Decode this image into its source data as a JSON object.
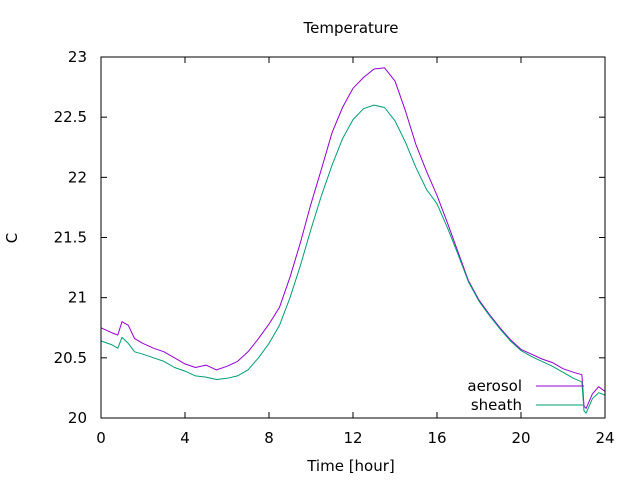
{
  "chart_data": {
    "type": "line",
    "title": "Temperature",
    "xlabel": "Time [hour]",
    "ylabel": "C",
    "xlim": [
      0,
      24
    ],
    "ylim": [
      20,
      23
    ],
    "xticks": [
      0,
      4,
      8,
      12,
      16,
      20,
      24
    ],
    "yticks": [
      20,
      20.5,
      21,
      21.5,
      22,
      22.5,
      23
    ],
    "ytick_labels": [
      "20",
      "20.5",
      "21",
      "21.5",
      "22",
      "22.5",
      "23"
    ],
    "grid": false,
    "legend_position": "bottom-right",
    "series": [
      {
        "name": "aerosol",
        "color": "#9400d3",
        "x": [
          0,
          0.5,
          0.8,
          1.0,
          1.3,
          1.6,
          2,
          2.5,
          3,
          3.5,
          4,
          4.5,
          5,
          5.5,
          6,
          6.5,
          7,
          7.5,
          8,
          8.5,
          9,
          9.5,
          10,
          10.5,
          11,
          11.5,
          12,
          12.5,
          13,
          13.5,
          14,
          14.5,
          15,
          15.5,
          16,
          16.5,
          17,
          17.5,
          18,
          18.5,
          19,
          19.5,
          20,
          20.5,
          21,
          21.5,
          22,
          22.5,
          22.9,
          23.0,
          23.1,
          23.4,
          23.7,
          24
        ],
        "y": [
          20.75,
          20.71,
          20.69,
          20.8,
          20.77,
          20.66,
          20.62,
          20.58,
          20.55,
          20.5,
          20.45,
          20.42,
          20.44,
          20.4,
          20.43,
          20.47,
          20.55,
          20.66,
          20.78,
          20.92,
          21.17,
          21.46,
          21.78,
          22.07,
          22.37,
          22.58,
          22.74,
          22.83,
          22.9,
          22.91,
          22.8,
          22.55,
          22.27,
          22.05,
          21.85,
          21.62,
          21.38,
          21.14,
          20.98,
          20.86,
          20.75,
          20.65,
          20.57,
          20.53,
          20.49,
          20.46,
          20.41,
          20.38,
          20.36,
          20.1,
          20.08,
          20.2,
          20.26,
          20.22
        ]
      },
      {
        "name": "sheath",
        "color": "#009e73",
        "x": [
          0,
          0.5,
          0.8,
          1.0,
          1.3,
          1.6,
          2,
          2.5,
          3,
          3.5,
          4,
          4.5,
          5,
          5.5,
          6,
          6.5,
          7,
          7.5,
          8,
          8.5,
          9,
          9.5,
          10,
          10.5,
          11,
          11.5,
          12,
          12.5,
          13,
          13.5,
          14,
          14.5,
          15,
          15.5,
          16,
          16.5,
          17,
          17.5,
          18,
          18.5,
          19,
          19.5,
          20,
          20.5,
          21,
          21.5,
          22,
          22.5,
          22.9,
          23.0,
          23.1,
          23.4,
          23.7,
          24
        ],
        "y": [
          20.64,
          20.61,
          20.58,
          20.67,
          20.62,
          20.55,
          20.53,
          20.5,
          20.47,
          20.42,
          20.39,
          20.35,
          20.34,
          20.32,
          20.33,
          20.35,
          20.4,
          20.5,
          20.62,
          20.77,
          21.0,
          21.27,
          21.57,
          21.85,
          22.1,
          22.32,
          22.48,
          22.57,
          22.6,
          22.58,
          22.47,
          22.29,
          22.08,
          21.9,
          21.78,
          21.58,
          21.36,
          21.13,
          20.97,
          20.85,
          20.74,
          20.64,
          20.56,
          20.51,
          20.47,
          20.43,
          20.38,
          20.33,
          20.3,
          20.06,
          20.04,
          20.16,
          20.21,
          20.19
        ]
      }
    ]
  }
}
